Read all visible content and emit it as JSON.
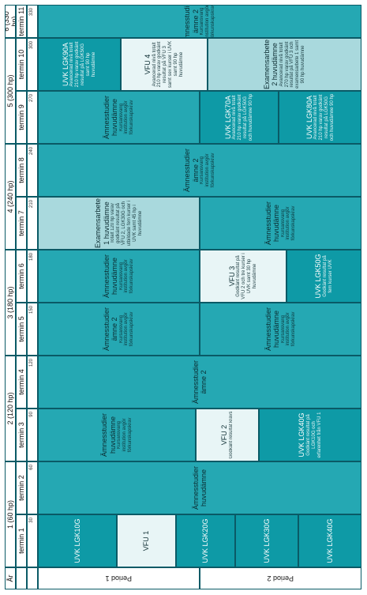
{
  "header": {
    "year_label": "År",
    "year_groups": [
      "1 (60 hp)",
      "2 (120 hp)",
      "3 (180 hp)",
      "4 (240 hp)",
      "5 (300 hp)",
      "6 (330 hp)"
    ],
    "terms": [
      "termin 1",
      "termin 2",
      "termin 3",
      "termin 4",
      "termin 5",
      "termin 6",
      "termin 7",
      "termin 8",
      "termin 9",
      "termin 10",
      "termin 11"
    ],
    "hp_marks": [
      "30",
      "60",
      "90",
      "120",
      "150",
      "180",
      "210",
      "240",
      "270",
      "300",
      "330"
    ]
  },
  "periods": [
    "Period 1",
    "Period 2"
  ],
  "cells": {
    "uvk_lgk10g": {
      "title": "UVK LGK10G"
    },
    "vfu1": {
      "title": "VFU 1"
    },
    "uvk_lgk20g_a": {
      "title": "UVK LGK20G"
    },
    "uvk_lgk30g": {
      "title": "UVK LGK30G"
    },
    "amnes_huv_1": {
      "title": "Ämnesstudier huvudämne"
    },
    "amnes_huv_2": {
      "title": "Ämnesstudier huvudämne",
      "sub": "Kursansvarig institution avgör förkunskapskrav"
    },
    "vfu2": {
      "title": "VFU 2",
      "sub": "Godkänt resultat krävs"
    },
    "uvk_lgk40g": {
      "title": "UVK LGK40G",
      "sub": "Godkänt resultat på LGK10G och erfarenhet från VFU 1"
    },
    "amnes2_a": {
      "title": "Ämnesstudier ämne 2"
    },
    "amnes2_b": {
      "title": "Ämnesstudier ämne 2",
      "sub": "Kursansvarig institution avgör förkunskapskrav"
    },
    "amnes_huv_3": {
      "title": "Ämnesstudier huvudämne",
      "sub": "Kursansvarig institution avgör förkunskapskrav"
    },
    "amnes_huv_4": {
      "title": "Ämnesstudier huvudämne",
      "sub": "Kursansvarig institution avgör förkunskapskrav"
    },
    "vfu3": {
      "title": "VFU 3",
      "sub": "Godkänt resultat på VFU 2 och tre kurser i UVK samt 30 hp huvudämne"
    },
    "uvk_lgk50g": {
      "title": "UVK LGK50G",
      "sub": "Godkänt resultat på fem kurser UVK"
    },
    "exam1": {
      "title": "Examensarbete 1 huvudämne",
      "sub": "Totalt 120 hp varav godkänt resultat på VFU 2, LGK30G och utbildade fem kurser i UVK samt 45 hp i huvudämne"
    },
    "amnes_huv_5": {
      "title": "Ämnesstudier huvudämne",
      "sub": "Kursansvarig institution avgör förkunskapskrav"
    },
    "amnes2_c": {
      "title": "Ämnesstudier ämne 2",
      "sub": "Kursansvarig institution avgör förkunskapskrav"
    },
    "amnes_huv_6": {
      "title": "Ämnesstudier huvudämne",
      "sub": "Kursansvarig institution avgör förkunskapskrav"
    },
    "uvk_lgk70a": {
      "title": "UVK LGK70A",
      "sub": "Avancerad nivå totalt 210 hp varav godkänt resultat på LGK50G och huvudämne 90 hp"
    },
    "uvk_lgk80a": {
      "title": "UVK LGK80A",
      "sub": "Avancerad nivå totalt 210 hp varav godkänt resultat på LGK50G och huvudämne 90 hp"
    },
    "uvk_lgk90a": {
      "title": "UVK LGK90A",
      "sub": "Avancerad nivå totalt 210 hp varav godkänt resultat på LGK50G samt 90 hp huvudämne"
    },
    "vfu4": {
      "title": "VFU 4",
      "sub": "Avancerad nivå totalt 210 hp varav godkänt resultat på VFU 3 samt sex kurser i UVK samt 90 hp huvudämne"
    },
    "exam2": {
      "title": "Examensarbete 2 huvudämne",
      "sub": "Avancerad nivå totalt 270 hp varav godkänt resultat på VFU 3 och examensarbete 1 samt 90 hp huvudämne"
    },
    "amnes2_d": {
      "title": "Ämnesstudier ämne 2",
      "sub": "Kursansvarig institution avgör förkunskapskrav"
    }
  }
}
